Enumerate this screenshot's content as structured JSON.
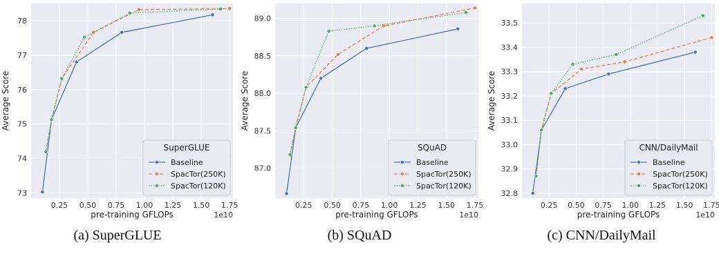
{
  "chart_data": [
    {
      "type": "line",
      "caption": "(a) SuperGLUE",
      "xlabel": "pre-training GFLOPs",
      "ylabel": "Average Score",
      "x_offset_label": "1e10",
      "xlim": [
        0.0,
        1.78
      ],
      "ylim": [
        72.85,
        78.5
      ],
      "xticks": [
        "0.25",
        "0.50",
        "0.75",
        "1.00",
        "1.25",
        "1.50",
        "1.75"
      ],
      "yticks": [
        "73",
        "74",
        "75",
        "76",
        "77",
        "78"
      ],
      "grid": true,
      "legend_title": "SuperGLUE",
      "legend_position": "lower-right",
      "series": [
        {
          "name": "Baseline",
          "color": "#4c72b0",
          "style": "solid",
          "x": [
            0.1,
            0.18,
            0.4,
            0.8,
            1.6
          ],
          "y": [
            73.03,
            75.13,
            76.8,
            77.66,
            78.17
          ]
        },
        {
          "name": "SpacTor(250K)",
          "color": "#dd8452",
          "style": "dashed",
          "x": [
            0.13,
            0.18,
            0.27,
            0.55,
            0.95,
            1.75
          ],
          "y": [
            74.2,
            75.13,
            76.32,
            77.66,
            78.32,
            78.35
          ]
        },
        {
          "name": "SpacTor(120K)",
          "color": "#55a868",
          "style": "dotted",
          "x": [
            0.13,
            0.18,
            0.27,
            0.47,
            0.87,
            1.67
          ],
          "y": [
            74.2,
            75.13,
            76.32,
            77.52,
            78.22,
            78.34
          ]
        }
      ]
    },
    {
      "type": "line",
      "caption": "(b) SQuAD",
      "xlabel": "pre-training GFLOPs",
      "ylabel": "Average Score",
      "x_offset_label": "1e10",
      "xlim": [
        0.0,
        1.78
      ],
      "ylim": [
        86.6,
        89.2
      ],
      "xticks": [
        "0.25",
        "0.50",
        "0.75",
        "1.00",
        "1.25",
        "1.50",
        "1.75"
      ],
      "yticks": [
        "87.0",
        "87.5",
        "88.0",
        "88.5",
        "89.0"
      ],
      "grid": true,
      "legend_title": "SQuAD",
      "legend_position": "lower-right",
      "series": [
        {
          "name": "Baseline",
          "color": "#4c72b0",
          "style": "solid",
          "x": [
            0.1,
            0.18,
            0.4,
            0.8,
            1.6
          ],
          "y": [
            86.66,
            87.54,
            88.2,
            88.6,
            88.86
          ]
        },
        {
          "name": "SpacTor(250K)",
          "color": "#dd8452",
          "style": "dashed",
          "x": [
            0.13,
            0.18,
            0.27,
            0.55,
            0.95,
            1.75
          ],
          "y": [
            87.18,
            87.54,
            88.08,
            88.52,
            88.9,
            89.14
          ]
        },
        {
          "name": "SpacTor(120K)",
          "color": "#55a868",
          "style": "dotted",
          "x": [
            0.13,
            0.18,
            0.27,
            0.47,
            0.87,
            1.67
          ],
          "y": [
            87.18,
            87.54,
            88.08,
            88.83,
            88.9,
            89.08
          ]
        }
      ]
    },
    {
      "type": "line",
      "caption": "(c) CNN/DailyMail",
      "xlabel": "pre-training GFLOPs",
      "ylabel": "Average Score",
      "x_offset_label": "1e10",
      "xlim": [
        0.0,
        1.78
      ],
      "ylim": [
        32.78,
        33.58
      ],
      "xticks": [
        "0.25",
        "0.50",
        "0.75",
        "1.00",
        "1.25",
        "1.50",
        "1.75"
      ],
      "yticks": [
        "32.8",
        "32.9",
        "33.0",
        "33.1",
        "33.2",
        "33.3",
        "33.4",
        "33.5"
      ],
      "grid": true,
      "legend_title": "CNN/DailyMail",
      "legend_position": "lower-right",
      "series": [
        {
          "name": "Baseline",
          "color": "#4c72b0",
          "style": "solid",
          "x": [
            0.1,
            0.18,
            0.4,
            0.8,
            1.6
          ],
          "y": [
            32.8,
            33.06,
            33.23,
            33.29,
            33.38
          ]
        },
        {
          "name": "SpacTor(250K)",
          "color": "#dd8452",
          "style": "dashed",
          "x": [
            0.13,
            0.18,
            0.27,
            0.55,
            0.95,
            1.75
          ],
          "y": [
            32.87,
            33.06,
            33.21,
            33.31,
            33.34,
            33.44
          ]
        },
        {
          "name": "SpacTor(120K)",
          "color": "#55a868",
          "style": "dotted",
          "x": [
            0.13,
            0.18,
            0.27,
            0.47,
            0.87,
            1.67
          ],
          "y": [
            32.87,
            33.06,
            33.21,
            33.33,
            33.37,
            33.53
          ]
        }
      ]
    }
  ]
}
